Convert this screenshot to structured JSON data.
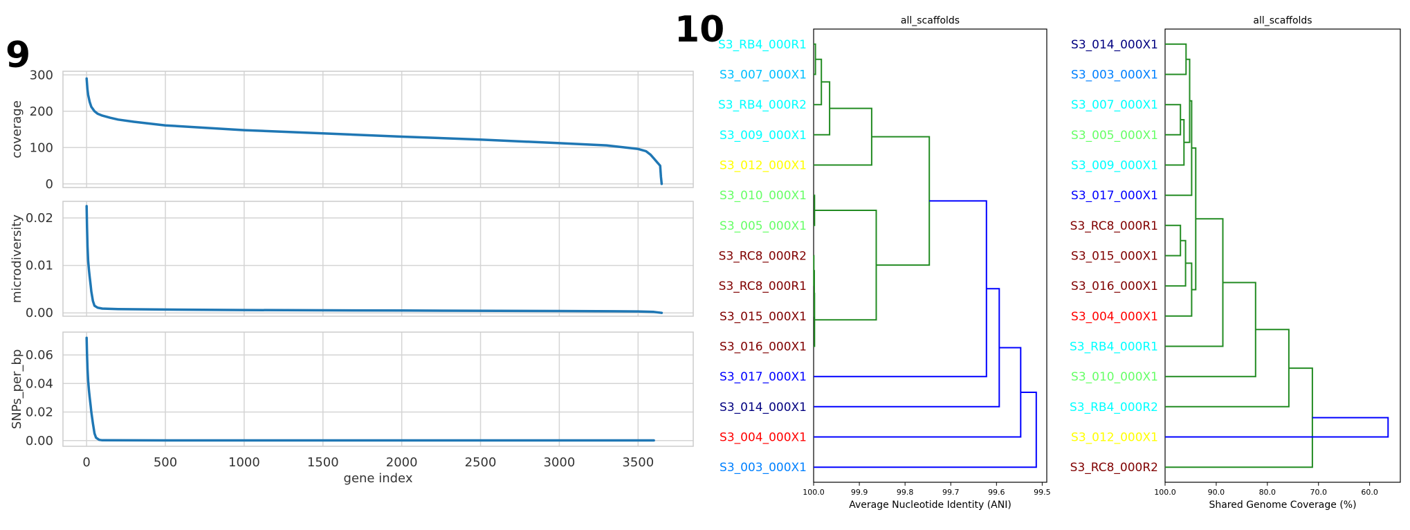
{
  "figure_labels": {
    "left": "9",
    "right": "10"
  },
  "colors": {
    "line": "#1f77b4",
    "grid": "#d4d4d4",
    "panel_border": "#cccccc",
    "tree_green": "#228b22",
    "tree_blue": "#0000ff"
  },
  "chart_data": [
    {
      "type": "line",
      "ylabel": "coverage",
      "xlabel": "",
      "xlim": [
        -150,
        3850
      ],
      "ylim": [
        -10,
        310
      ],
      "yticks": [
        0,
        100,
        200,
        300
      ],
      "yticklabels": [
        "0",
        "100",
        "200",
        "300"
      ],
      "xticks": [
        0,
        500,
        1000,
        1500,
        2000,
        2500,
        3000,
        3500
      ],
      "grid": true,
      "x": [
        0,
        5,
        10,
        20,
        30,
        50,
        70,
        100,
        150,
        200,
        300,
        500,
        1000,
        1500,
        2000,
        2500,
        3000,
        3300,
        3500,
        3550,
        3580,
        3600,
        3620,
        3640,
        3645,
        3650
      ],
      "y": [
        290,
        262,
        245,
        225,
        212,
        200,
        193,
        188,
        182,
        177,
        171,
        161,
        148,
        139,
        130,
        122,
        112,
        106,
        96,
        90,
        80,
        70,
        60,
        50,
        20,
        0
      ]
    },
    {
      "type": "line",
      "ylabel": "microdiversity",
      "xlabel": "",
      "xlim": [
        -150,
        3850
      ],
      "ylim": [
        -0.0007,
        0.0235
      ],
      "yticks": [
        0,
        0.01,
        0.02
      ],
      "yticklabels": [
        "0.00",
        "0.01",
        "0.02"
      ],
      "xticks": [
        0,
        500,
        1000,
        1500,
        2000,
        2500,
        3000,
        3500
      ],
      "grid": true,
      "x": [
        0,
        3,
        6,
        10,
        15,
        20,
        25,
        30,
        40,
        50,
        70,
        100,
        200,
        500,
        1000,
        2000,
        3000,
        3500,
        3600,
        3650
      ],
      "y": [
        0.0225,
        0.018,
        0.014,
        0.011,
        0.009,
        0.0075,
        0.006,
        0.0045,
        0.0025,
        0.0015,
        0.0011,
        0.0009,
        0.0008,
        0.0007,
        0.0006,
        0.0005,
        0.0004,
        0.0003,
        0.0002,
        0.0
      ]
    },
    {
      "type": "line",
      "ylabel": "SNPs_per_bp",
      "xlabel": "gene index",
      "xlim": [
        -150,
        3850
      ],
      "ylim": [
        -0.004,
        0.076
      ],
      "yticks": [
        0,
        0.02,
        0.04,
        0.06
      ],
      "yticklabels": [
        "0.00",
        "0.02",
        "0.04",
        "0.06"
      ],
      "xticks": [
        0,
        500,
        1000,
        1500,
        2000,
        2500,
        3000,
        3500
      ],
      "xticklabels": [
        "0",
        "500",
        "1000",
        "1500",
        "2000",
        "2500",
        "3000",
        "3500"
      ],
      "grid": true,
      "x": [
        0,
        3,
        6,
        10,
        15,
        20,
        25,
        30,
        40,
        50,
        60,
        80,
        100,
        500,
        1000,
        2000,
        3000,
        3600
      ],
      "y": [
        0.072,
        0.06,
        0.05,
        0.042,
        0.035,
        0.03,
        0.025,
        0.02,
        0.012,
        0.005,
        0.002,
        0.0005,
        0.0002,
        0.0001,
        0.0001,
        0.0001,
        0.0001,
        0.0001
      ]
    },
    {
      "type": "dendrogram",
      "title": "all_scaffolds",
      "xlabel": "Average Nucleotide Identity (ANI)",
      "xlim": [
        100.0,
        99.49
      ],
      "xticks": [
        100.0,
        99.9,
        99.8,
        99.7,
        99.6,
        99.5
      ],
      "xticklabels": [
        "100.0",
        "99.9",
        "99.8",
        "99.7",
        "99.6",
        "99.5"
      ],
      "leaves": [
        {
          "label": "S3_RB4_000R1",
          "color": "#00ffff"
        },
        {
          "label": "S3_007_000X1",
          "color": "#00c0ff"
        },
        {
          "label": "S3_RB4_000R2",
          "color": "#00ffff"
        },
        {
          "label": "S3_009_000X1",
          "color": "#00ffff"
        },
        {
          "label": "S3_012_000X1",
          "color": "#ffff00"
        },
        {
          "label": "S3_010_000X1",
          "color": "#66ff66"
        },
        {
          "label": "S3_005_000X1",
          "color": "#66ff66"
        },
        {
          "label": "S3_RC8_000R2",
          "color": "#800000"
        },
        {
          "label": "S3_RC8_000R1",
          "color": "#800000"
        },
        {
          "label": "S3_015_000X1",
          "color": "#800000"
        },
        {
          "label": "S3_016_000X1",
          "color": "#800000"
        },
        {
          "label": "S3_017_000X1",
          "color": "#0000ff"
        },
        {
          "label": "S3_014_000X1",
          "color": "#000080"
        },
        {
          "label": "S3_004_000X1",
          "color": "#ff0000"
        },
        {
          "label": "S3_003_000X1",
          "color": "#0080ff"
        }
      ],
      "merges": [
        [
          0,
          1,
          99.996,
          "g"
        ],
        [
          15,
          2,
          99.983,
          "g"
        ],
        [
          16,
          3,
          99.965,
          "g"
        ],
        [
          17,
          4,
          99.873,
          "g"
        ],
        [
          5,
          6,
          99.998,
          "g"
        ],
        [
          7,
          8,
          99.9995,
          "g"
        ],
        [
          20,
          9,
          99.9985,
          "g"
        ],
        [
          21,
          10,
          99.998,
          "g"
        ],
        [
          19,
          22,
          99.863,
          "g"
        ],
        [
          18,
          23,
          99.747,
          "g"
        ],
        [
          24,
          11,
          99.622,
          "b"
        ],
        [
          25,
          12,
          99.594,
          "b"
        ],
        [
          26,
          13,
          99.547,
          "b"
        ],
        [
          27,
          14,
          99.513,
          "b"
        ]
      ]
    },
    {
      "type": "dendrogram",
      "title": "all_scaffolds",
      "xlabel": "Shared Genome Coverage (%)",
      "xlim": [
        100.0,
        54.0
      ],
      "xticks": [
        100.0,
        90.0,
        80.0,
        70.0,
        60.0
      ],
      "xticklabels": [
        "100.0",
        "90.0",
        "80.0",
        "70.0",
        "60.0"
      ],
      "leaves": [
        {
          "label": "S3_014_000X1",
          "color": "#000080"
        },
        {
          "label": "S3_003_000X1",
          "color": "#0080ff"
        },
        {
          "label": "S3_007_000X1",
          "color": "#00ffff"
        },
        {
          "label": "S3_005_000X1",
          "color": "#66ff66"
        },
        {
          "label": "S3_009_000X1",
          "color": "#00ffff"
        },
        {
          "label": "S3_017_000X1",
          "color": "#0000ff"
        },
        {
          "label": "S3_RC8_000R1",
          "color": "#800000"
        },
        {
          "label": "S3_015_000X1",
          "color": "#800000"
        },
        {
          "label": "S3_016_000X1",
          "color": "#800000"
        },
        {
          "label": "S3_004_000X1",
          "color": "#ff0000"
        },
        {
          "label": "S3_RB4_000R1",
          "color": "#00ffff"
        },
        {
          "label": "S3_010_000X1",
          "color": "#66ff66"
        },
        {
          "label": "S3_RB4_000R2",
          "color": "#00ffff"
        },
        {
          "label": "S3_012_000X1",
          "color": "#ffff00"
        },
        {
          "label": "S3_RC8_000R2",
          "color": "#800000"
        }
      ],
      "merges": [
        [
          0,
          1,
          95.9,
          "g"
        ],
        [
          2,
          3,
          97.0,
          "g"
        ],
        [
          16,
          4,
          96.3,
          "g"
        ],
        [
          15,
          17,
          95.2,
          "g"
        ],
        [
          18,
          5,
          94.8,
          "g"
        ],
        [
          6,
          7,
          97.0,
          "g"
        ],
        [
          20,
          8,
          96.0,
          "g"
        ],
        [
          21,
          9,
          94.8,
          "g"
        ],
        [
          19,
          22,
          94.0,
          "g"
        ],
        [
          23,
          10,
          88.7,
          "g"
        ],
        [
          24,
          11,
          82.3,
          "g"
        ],
        [
          25,
          12,
          75.8,
          "g"
        ],
        [
          26,
          14,
          71.2,
          "g"
        ],
        [
          27,
          13,
          56.4,
          "b"
        ]
      ]
    }
  ]
}
